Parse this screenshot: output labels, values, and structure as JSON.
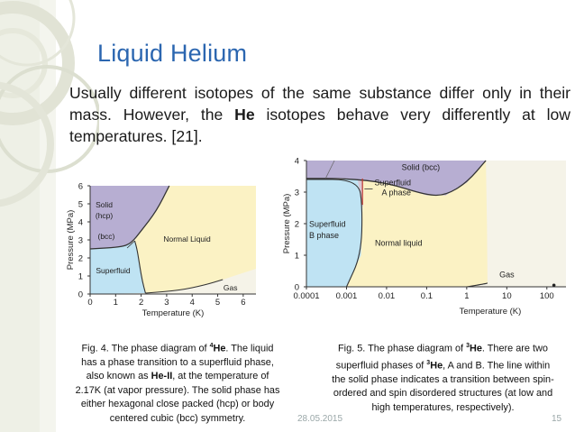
{
  "slide": {
    "title": "Liquid Helium",
    "intro": {
      "part1": "Usually different isotopes of the same substance differ only in their mass. However, the ",
      "bold": "He",
      "part2": " isotopes behave very differently at low temperatures. [21]."
    },
    "footer": {
      "date": "28.05.2015",
      "page": "15"
    }
  },
  "fig4": {
    "caption": {
      "l1a": "Fig. 4. The phase diagram of ",
      "l1sup": "4",
      "l1b": "He",
      "l1c": ". The liquid",
      "l2": "has a phase transition to a superfluid phase,",
      "l3a": "also known as ",
      "l3b": "He-II",
      "l3c": ", at the temperature of",
      "l4": "2.17K (at vapor pressure). The solid phase has",
      "l5": "either hexagonal close packed (hcp) or body",
      "l6": "centered cubic (bcc) symmetry."
    }
  },
  "fig5": {
    "caption": {
      "l1a": "Fig. 5. The phase diagram of ",
      "l1sup": "3",
      "l1b": "He",
      "l1c": ". There are two",
      "l2a": "superfluid phases of ",
      "l2sup": "3",
      "l2b": "He",
      "l2c": ", A and B. The line within",
      "l3": "the solid phase indicates a transition between spin-",
      "l4": "ordered and spin disordered structures (at low and",
      "l5": "high temperatures, respectively)."
    }
  },
  "colors": {
    "title": "#2b66b0",
    "solid": "#b7aed2",
    "superfluid": "#bfe3f3",
    "normal_liquid": "#fbf2c4",
    "gas": "#f5f3e8"
  },
  "chart_data": [
    {
      "type": "area",
      "xlabel": "Temperature (K)",
      "ylabel": "Pressure (MPa)",
      "xlim": [
        0,
        6.5
      ],
      "ylim": [
        0,
        6
      ],
      "x_ticks": [
        "0",
        "1",
        "2",
        "3",
        "4",
        "5",
        "6"
      ],
      "y_ticks": [
        "0",
        "1",
        "2",
        "3",
        "4",
        "5",
        "6"
      ],
      "regions": [
        "Solid\n(hcp)",
        "(bcc)",
        "Normal Liquid",
        "Superfluid",
        "Gas"
      ],
      "boundaries": {
        "melting_curve": [
          [
            0,
            2.5
          ],
          [
            1.2,
            2.6
          ],
          [
            1.6,
            2.8
          ],
          [
            2.0,
            3.5
          ],
          [
            2.6,
            4.6
          ],
          [
            3.1,
            6.0
          ]
        ],
        "lambda_line": [
          [
            1.75,
            2.95
          ],
          [
            1.85,
            2.4
          ],
          [
            1.95,
            1.5
          ],
          [
            2.05,
            0.7
          ],
          [
            2.17,
            0.05
          ]
        ],
        "vapor_curve": [
          [
            2.17,
            0.05
          ],
          [
            3.5,
            0.2
          ],
          [
            4.5,
            0.5
          ],
          [
            5.2,
            0.8
          ]
        ]
      }
    },
    {
      "type": "area",
      "xlabel": "Temperature (K)",
      "ylabel": "Pressure (MPa)",
      "x_scale": "log",
      "xlim": [
        0.0001,
        300
      ],
      "ylim": [
        0,
        4
      ],
      "x_ticks": [
        "0.0001",
        "0.001",
        "0.01",
        "0.1",
        "1",
        "10",
        "100"
      ],
      "y_ticks": [
        "0",
        "1",
        "2",
        "3",
        "4"
      ],
      "regions": [
        "Solid (bcc)",
        "Superfluid\nA phase",
        "Superfluid\nB phase",
        "Normal liquid",
        "Gas"
      ],
      "boundaries": {
        "melting_curve": [
          [
            0.0001,
            3.43
          ],
          [
            0.001,
            3.43
          ],
          [
            0.01,
            3.3
          ],
          [
            0.1,
            2.9
          ],
          [
            0.3,
            2.9
          ],
          [
            1,
            3.3
          ],
          [
            3,
            4.0
          ]
        ],
        "superfluid_boundary": [
          [
            0.0001,
            3.4
          ],
          [
            0.002,
            3.4
          ],
          [
            0.0025,
            2.5
          ],
          [
            0.0023,
            1.0
          ],
          [
            0.001,
            0.0
          ]
        ],
        "vapor_curve": [
          [
            1,
            0.0
          ],
          [
            3,
            0.1
          ],
          [
            3.3,
            0.12
          ]
        ]
      },
      "critical_point": [
        150,
        0.05
      ]
    }
  ]
}
